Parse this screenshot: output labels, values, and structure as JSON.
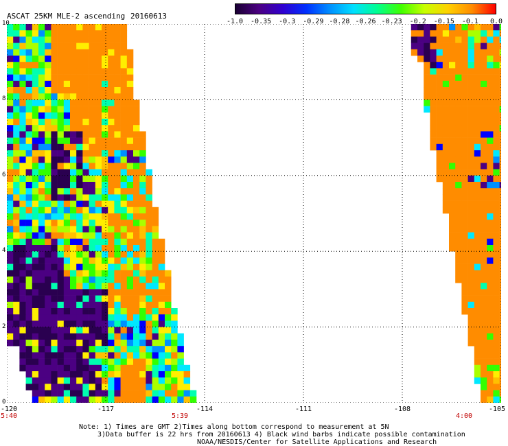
{
  "title": "ASCAT 25KM MLE-2 ascending",
  "date": "20160613",
  "colorbar": {
    "labels": [
      "-1.0",
      "-0.35",
      "-0.3",
      "-0.29",
      "-0.28",
      "-0.26",
      "-0.23",
      "-0.2",
      "-0.15",
      "-0.1",
      "0.0"
    ],
    "colors": [
      "#1a0033",
      "#4b0082",
      "#3000d0",
      "#0030ff",
      "#0090ff",
      "#00e0ff",
      "#00ff90",
      "#40ff00",
      "#c8ff00",
      "#ffd000",
      "#ff8c00",
      "#ff0000"
    ]
  },
  "yaxis": {
    "ticks": [
      "10",
      "8",
      "6",
      "4",
      "2",
      "0"
    ]
  },
  "xaxis": {
    "ticks": [
      "-120",
      "-117",
      "-114",
      "-111",
      "-108",
      "-105"
    ]
  },
  "times": [
    "5:40",
    "5:39",
    "4:00"
  ],
  "notes": [
    "Note: 1) Times are GMT 2)Times along bottom correspond to measurement at 5N",
    "3)Data buffer is 22 hrs from 20160613 4) Black wind barbs indicate possible contamination",
    "NOAA/NESDIS/Center for Satellite Applications and Research"
  ]
}
